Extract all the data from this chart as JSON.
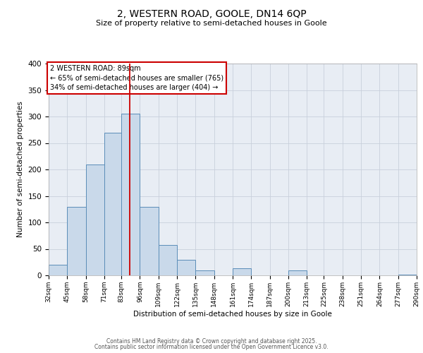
{
  "title": "2, WESTERN ROAD, GOOLE, DN14 6QP",
  "subtitle": "Size of property relative to semi-detached houses in Goole",
  "xlabel": "Distribution of semi-detached houses by size in Goole",
  "ylabel": "Number of semi-detached properties",
  "bin_edges": [
    32,
    45,
    58,
    71,
    83,
    96,
    109,
    122,
    135,
    148,
    161,
    174,
    187,
    200,
    213,
    225,
    238,
    251,
    264,
    277,
    290
  ],
  "bin_counts": [
    20,
    130,
    210,
    270,
    305,
    130,
    57,
    29,
    10,
    0,
    13,
    0,
    0,
    10,
    0,
    0,
    0,
    0,
    0,
    2
  ],
  "bar_facecolor": "#c9d9ea",
  "bar_edgecolor": "#5b8db8",
  "grid_color": "#c8d0dc",
  "bg_color": "#e8edf4",
  "property_size": 89,
  "vline_color": "#cc0000",
  "annotation_text": "2 WESTERN ROAD: 89sqm\n← 65% of semi-detached houses are smaller (765)\n34% of semi-detached houses are larger (404) →",
  "annotation_box_edgecolor": "#cc0000",
  "footer1": "Contains HM Land Registry data © Crown copyright and database right 2025.",
  "footer2": "Contains public sector information licensed under the Open Government Licence v3.0.",
  "ylim": [
    0,
    400
  ],
  "tick_labels": [
    "32sqm",
    "45sqm",
    "58sqm",
    "71sqm",
    "83sqm",
    "96sqm",
    "109sqm",
    "122sqm",
    "135sqm",
    "148sqm",
    "161sqm",
    "174sqm",
    "187sqm",
    "200sqm",
    "213sqm",
    "225sqm",
    "238sqm",
    "251sqm",
    "264sqm",
    "277sqm",
    "290sqm"
  ]
}
